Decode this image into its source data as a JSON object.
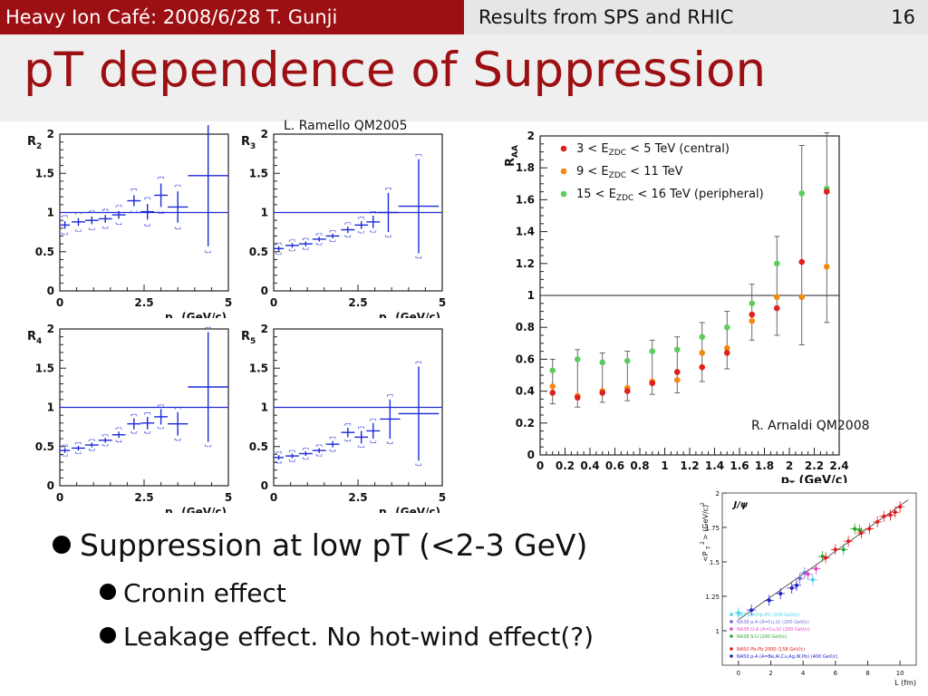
{
  "header": {
    "left": "Heavy Ion Café: 2008/6/28 T. Gunji",
    "center": "Results from SPS and RHIC",
    "page": "16"
  },
  "title": "pT dependence of Suppression",
  "captions": {
    "ramello": "L. Ramello QM2005",
    "arnaldi": "R. Arnaldi QM2008"
  },
  "bullets": [
    {
      "text": "Suppression at low pT (<2-3 GeV)",
      "subs": [
        "Cronin effect",
        "Leakage effect. No hot-wind effect(?)"
      ]
    }
  ],
  "colors": {
    "header_bg": "#9c0f12",
    "title": "#9c0f12",
    "plot_blue": "#1c2ad6",
    "central": "#e02020",
    "mid": "#f08a10",
    "peripheral": "#5ccc5c"
  },
  "chart_data": [
    {
      "type": "scatter",
      "panel": "R2",
      "ylabel": "R2",
      "xlabel": "pT (GeV/c)",
      "xlim": [
        0,
        5
      ],
      "ylim": [
        0,
        2
      ],
      "xticks": [
        "0",
        "2.5",
        "5"
      ],
      "yticks": [
        "0",
        "0.5",
        "1",
        "1.5",
        "2"
      ],
      "reference_line": 1,
      "points": [
        {
          "x": 0.15,
          "y": 0.84,
          "ex": 0.15,
          "ey": 0.05,
          "sys": 0.07
        },
        {
          "x": 0.55,
          "y": 0.88,
          "ex": 0.2,
          "ey": 0.05,
          "sys": 0.07
        },
        {
          "x": 0.95,
          "y": 0.9,
          "ex": 0.2,
          "ey": 0.05,
          "sys": 0.07
        },
        {
          "x": 1.35,
          "y": 0.92,
          "ex": 0.2,
          "ey": 0.05,
          "sys": 0.07
        },
        {
          "x": 1.75,
          "y": 0.97,
          "ex": 0.2,
          "ey": 0.05,
          "sys": 0.07
        },
        {
          "x": 2.2,
          "y": 1.15,
          "ex": 0.2,
          "ey": 0.07,
          "sys": 0.08
        },
        {
          "x": 2.6,
          "y": 1.01,
          "ex": 0.2,
          "ey": 0.1,
          "sys": 0.08
        },
        {
          "x": 3.0,
          "y": 1.22,
          "ex": 0.2,
          "ey": 0.15,
          "sys": 0.08
        },
        {
          "x": 3.5,
          "y": 1.07,
          "ex": 0.3,
          "ey": 0.2,
          "sys": 0.08
        },
        {
          "x": 4.4,
          "y": 1.47,
          "ex": 0.6,
          "ey": 0.9,
          "sys": 0.08
        }
      ]
    },
    {
      "type": "scatter",
      "panel": "R3",
      "ylabel": "R3",
      "xlabel": "pT (GeV/c)",
      "xlim": [
        0,
        5
      ],
      "ylim": [
        0,
        2
      ],
      "xticks": [
        "0",
        "2.5",
        "5"
      ],
      "yticks": [
        "0",
        "0.5",
        "1",
        "1.5",
        "2"
      ],
      "reference_line": 1,
      "points": [
        {
          "x": 0.15,
          "y": 0.54,
          "ex": 0.15,
          "ey": 0.03,
          "sys": 0.04
        },
        {
          "x": 0.55,
          "y": 0.58,
          "ex": 0.2,
          "ey": 0.03,
          "sys": 0.04
        },
        {
          "x": 0.95,
          "y": 0.6,
          "ex": 0.2,
          "ey": 0.03,
          "sys": 0.04
        },
        {
          "x": 1.35,
          "y": 0.66,
          "ex": 0.2,
          "ey": 0.03,
          "sys": 0.04
        },
        {
          "x": 1.75,
          "y": 0.7,
          "ex": 0.2,
          "ey": 0.03,
          "sys": 0.04
        },
        {
          "x": 2.2,
          "y": 0.78,
          "ex": 0.2,
          "ey": 0.04,
          "sys": 0.05
        },
        {
          "x": 2.6,
          "y": 0.84,
          "ex": 0.2,
          "ey": 0.05,
          "sys": 0.05
        },
        {
          "x": 2.95,
          "y": 0.88,
          "ex": 0.2,
          "ey": 0.08,
          "sys": 0.05
        },
        {
          "x": 3.4,
          "y": 1.0,
          "ex": 0.3,
          "ey": 0.25,
          "sys": 0.06
        },
        {
          "x": 4.3,
          "y": 1.08,
          "ex": 0.6,
          "ey": 0.6,
          "sys": 0.06
        }
      ]
    },
    {
      "type": "scatter",
      "panel": "R4",
      "ylabel": "R4",
      "xlabel": "pT (GeV/c)",
      "xlim": [
        0,
        5
      ],
      "ylim": [
        0,
        2
      ],
      "xticks": [
        "0",
        "2.5",
        "5"
      ],
      "yticks": [
        "0",
        "0.5",
        "1",
        "1.5",
        "2"
      ],
      "reference_line": 1,
      "points": [
        {
          "x": 0.15,
          "y": 0.45,
          "ex": 0.15,
          "ey": 0.03,
          "sys": 0.04
        },
        {
          "x": 0.55,
          "y": 0.48,
          "ex": 0.2,
          "ey": 0.03,
          "sys": 0.04
        },
        {
          "x": 0.95,
          "y": 0.52,
          "ex": 0.2,
          "ey": 0.03,
          "sys": 0.04
        },
        {
          "x": 1.35,
          "y": 0.58,
          "ex": 0.2,
          "ey": 0.03,
          "sys": 0.04
        },
        {
          "x": 1.75,
          "y": 0.65,
          "ex": 0.2,
          "ey": 0.04,
          "sys": 0.05
        },
        {
          "x": 2.2,
          "y": 0.79,
          "ex": 0.2,
          "ey": 0.07,
          "sys": 0.05
        },
        {
          "x": 2.6,
          "y": 0.8,
          "ex": 0.2,
          "ey": 0.08,
          "sys": 0.05
        },
        {
          "x": 3.0,
          "y": 0.88,
          "ex": 0.2,
          "ey": 0.1,
          "sys": 0.05
        },
        {
          "x": 3.5,
          "y": 0.79,
          "ex": 0.3,
          "ey": 0.15,
          "sys": 0.06
        },
        {
          "x": 4.4,
          "y": 1.26,
          "ex": 0.6,
          "ey": 0.7,
          "sys": 0.06
        }
      ]
    },
    {
      "type": "scatter",
      "panel": "R5",
      "ylabel": "R5",
      "xlabel": "pT (GeV/c)",
      "xlim": [
        0,
        5
      ],
      "ylim": [
        0,
        2
      ],
      "xticks": [
        "0",
        "2.5",
        "5"
      ],
      "yticks": [
        "0",
        "0.5",
        "1",
        "1.5",
        "2"
      ],
      "reference_line": 1,
      "points": [
        {
          "x": 0.15,
          "y": 0.36,
          "ex": 0.15,
          "ey": 0.03,
          "sys": 0.04
        },
        {
          "x": 0.55,
          "y": 0.38,
          "ex": 0.2,
          "ey": 0.03,
          "sys": 0.04
        },
        {
          "x": 0.95,
          "y": 0.41,
          "ex": 0.2,
          "ey": 0.03,
          "sys": 0.04
        },
        {
          "x": 1.35,
          "y": 0.45,
          "ex": 0.2,
          "ey": 0.03,
          "sys": 0.04
        },
        {
          "x": 1.75,
          "y": 0.53,
          "ex": 0.2,
          "ey": 0.04,
          "sys": 0.05
        },
        {
          "x": 2.2,
          "y": 0.68,
          "ex": 0.2,
          "ey": 0.06,
          "sys": 0.05
        },
        {
          "x": 2.6,
          "y": 0.62,
          "ex": 0.2,
          "ey": 0.08,
          "sys": 0.05
        },
        {
          "x": 2.95,
          "y": 0.7,
          "ex": 0.2,
          "ey": 0.1,
          "sys": 0.05
        },
        {
          "x": 3.45,
          "y": 0.85,
          "ex": 0.3,
          "ey": 0.25,
          "sys": 0.06
        },
        {
          "x": 4.3,
          "y": 0.92,
          "ex": 0.6,
          "ey": 0.6,
          "sys": 0.06
        }
      ]
    },
    {
      "type": "scatter",
      "panel": "RAA",
      "ylabel": "RAA",
      "xlabel": "pT (GeV/c)",
      "xlim": [
        0,
        2.4
      ],
      "ylim": [
        0,
        2
      ],
      "xticks": [
        "0",
        "0.2",
        "0.4",
        "0.6",
        "0.8",
        "1",
        "1.2",
        "1.4",
        "1.6",
        "1.8",
        "2",
        "2.2",
        "2.4"
      ],
      "yticks": [
        "0",
        "0.2",
        "0.4",
        "0.6",
        "0.8",
        "1",
        "1.2",
        "1.4",
        "1.6",
        "1.8",
        "2"
      ],
      "reference_line": 1,
      "series": [
        {
          "name": "3 < EZDC < 5 TeV (central)",
          "color": "#e02020",
          "x": [
            0.1,
            0.3,
            0.5,
            0.7,
            0.9,
            1.1,
            1.3,
            1.5,
            1.7,
            1.9,
            2.1,
            2.3
          ],
          "y": [
            0.39,
            0.36,
            0.39,
            0.4,
            0.45,
            0.52,
            0.55,
            0.64,
            0.88,
            0.92,
            1.21,
            1.65
          ]
        },
        {
          "name": "9 < EZDC < 11 TeV",
          "color": "#f08a10",
          "x": [
            0.1,
            0.3,
            0.5,
            0.7,
            0.9,
            1.1,
            1.3,
            1.5,
            1.7,
            1.9,
            2.1,
            2.3
          ],
          "y": [
            0.43,
            0.37,
            0.4,
            0.42,
            0.46,
            0.47,
            0.64,
            0.67,
            0.84,
            0.99,
            0.99,
            1.18
          ]
        },
        {
          "name": "15 < EZDC < 16 TeV (peripheral)",
          "color": "#5ccc5c",
          "x": [
            0.1,
            0.3,
            0.5,
            0.7,
            0.9,
            1.1,
            1.3,
            1.5,
            1.7,
            1.9,
            2.1,
            2.3
          ],
          "y": [
            0.53,
            0.6,
            0.58,
            0.59,
            0.65,
            0.66,
            0.74,
            0.8,
            0.95,
            1.2,
            1.64,
            1.67
          ]
        }
      ],
      "errors": [
        0.07,
        0.06,
        0.06,
        0.06,
        0.07,
        0.08,
        0.09,
        0.1,
        0.12,
        0.17,
        0.3,
        0.35
      ]
    },
    {
      "type": "scatter",
      "panel": "pt2",
      "title": "J/ψ",
      "xlabel": "L (fm)",
      "ylabel": "<P_T^2> (GeV/c)^2",
      "xlim": [
        -1,
        11
      ],
      "ylim": [
        0.75,
        2
      ],
      "xticks": [
        "0",
        "2",
        "4",
        "6",
        "8",
        "10"
      ],
      "yticks": [
        "1",
        "1.25",
        "1.5",
        "1.75",
        "2"
      ],
      "fit_line": [
        [
          0,
          1.08
        ],
        [
          10.5,
          1.95
        ]
      ],
      "series": [
        {
          "name": "NA3 p-A(Hp,Pt) (200 GeV/c)",
          "color": "#3fd3e8",
          "x": [
            0,
            4.6
          ],
          "y": [
            1.13,
            1.37
          ]
        },
        {
          "name": "NA38 p-A (A=Cu,U) (200 GeV/c)",
          "color": "#6a6ad8",
          "x": [
            3.8,
            4.1
          ],
          "y": [
            1.38,
            1.42
          ]
        },
        {
          "name": "NA38 O-A (A=Cu,U) (200 GeV/c)",
          "color": "#e048c8",
          "x": [
            4.3,
            4.8
          ],
          "y": [
            1.41,
            1.45
          ]
        },
        {
          "name": "NA38 S-U (200 GeV/c)",
          "color": "#2aa62a",
          "x": [
            5.2,
            6.5,
            7.2,
            7.5
          ],
          "y": [
            1.54,
            1.59,
            1.74,
            1.73
          ]
        },
        {
          "name": "NA50 Pb-Pb 2000 (158 GeV/c)",
          "color": "#e01818",
          "x": [
            5.4,
            6.0,
            6.8,
            7.6,
            8.1,
            8.6,
            9.0,
            9.4,
            9.7,
            10.0
          ],
          "y": [
            1.53,
            1.59,
            1.65,
            1.71,
            1.74,
            1.79,
            1.83,
            1.84,
            1.86,
            1.9
          ]
        },
        {
          "name": "NA50 p-A (A=Be,Al,Cu,Ag,W,Pb) (400 GeV/c)",
          "color": "#2020c8",
          "x": [
            0.8,
            1.9,
            2.6,
            3.3,
            3.6
          ],
          "y": [
            1.15,
            1.22,
            1.27,
            1.31,
            1.33
          ]
        }
      ]
    }
  ]
}
